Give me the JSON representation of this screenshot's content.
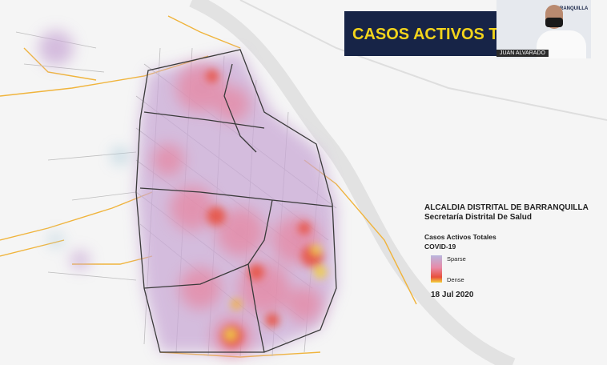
{
  "header": {
    "banner_title": "CASOS ACTIVOS T"
  },
  "speaker": {
    "name": "JUAN ALVARADO",
    "logo_text": "BARRANQUILLA"
  },
  "info": {
    "organization": "ALCALDIA DISTRITAL DE BARRANQUILLA",
    "department": "Secretaría Distrital De Salud",
    "layer_title": "Casos Activos Totales",
    "layer_subtitle": "COVID-19",
    "legend": {
      "low": "Sparse",
      "high": "Dense"
    },
    "date": "18 Jul 2020"
  }
}
